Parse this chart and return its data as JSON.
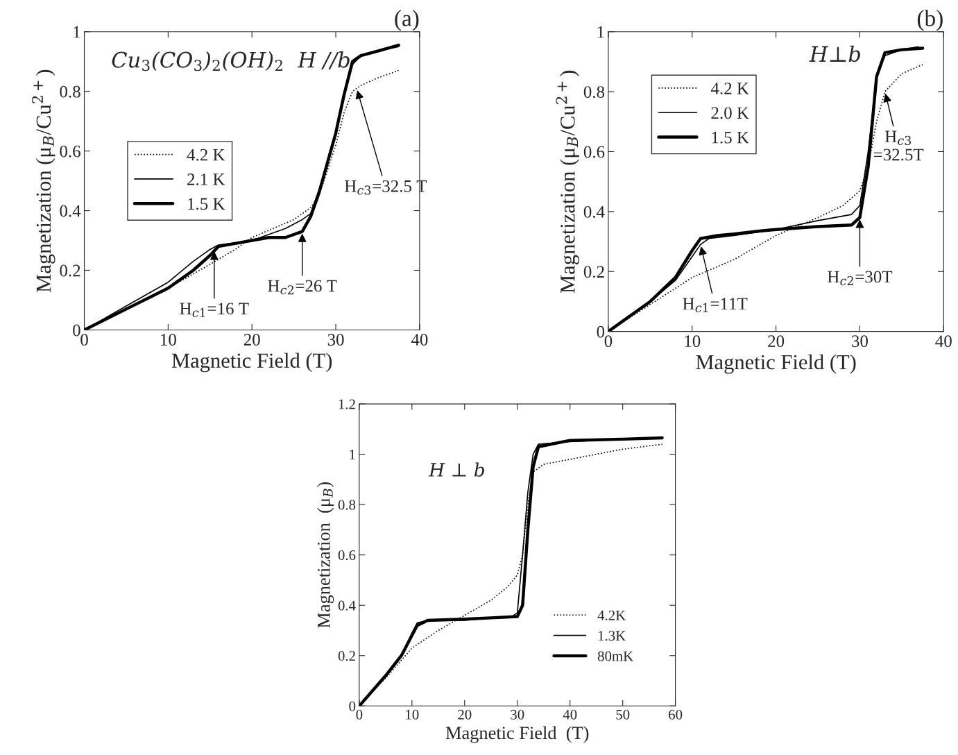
{
  "chart_data": [
    {
      "type": "line",
      "title": "(a)",
      "xlabel": "Magnetic Field (T)",
      "ylabel": "Magnetization (μ$_{B}$/Cu$^{2+}$)",
      "xlim": [
        0,
        40
      ],
      "ylim": [
        0,
        1
      ],
      "xticks": [
        0,
        10,
        20,
        30,
        40
      ],
      "yticks": [
        0,
        0.2,
        0.4,
        0.6,
        0.8,
        1
      ],
      "legend": "left",
      "grid": false,
      "series": [
        {
          "name": "4.2 K",
          "color": "#000000",
          "line_style": "dotted",
          "x": [
            0,
            5,
            10,
            15,
            18,
            20,
            25,
            27,
            28,
            30,
            31,
            32,
            33,
            35,
            37.5
          ],
          "values": [
            0,
            0.07,
            0.14,
            0.22,
            0.27,
            0.31,
            0.37,
            0.41,
            0.45,
            0.62,
            0.73,
            0.8,
            0.82,
            0.845,
            0.87
          ]
        },
        {
          "name": "2.1 K",
          "color": "#000000",
          "line_style": "solid",
          "x": [
            0,
            5,
            10,
            13,
            15,
            16,
            20,
            24,
            26,
            27,
            28,
            30,
            31,
            32,
            33,
            35,
            37.5
          ],
          "values": [
            0,
            0.08,
            0.16,
            0.23,
            0.27,
            0.285,
            0.3,
            0.34,
            0.37,
            0.39,
            0.47,
            0.66,
            0.79,
            0.89,
            0.92,
            0.935,
            0.95
          ]
        },
        {
          "name": "1.5 K",
          "color": "#000000",
          "line_style": "solid",
          "x": [
            0,
            5,
            10,
            13,
            15,
            16,
            18,
            20,
            22,
            24,
            26,
            27,
            28,
            30,
            31,
            32,
            33,
            35,
            37.5
          ],
          "values": [
            0,
            0.07,
            0.14,
            0.2,
            0.25,
            0.28,
            0.29,
            0.3,
            0.31,
            0.31,
            0.33,
            0.38,
            0.46,
            0.66,
            0.79,
            0.9,
            0.92,
            0.935,
            0.955
          ]
        }
      ],
      "annotations": [
        "Cu$_{3}$(CO$_{3}$)$_{2}$(OH)$_{2}$  H //b",
        {
          "text": "H$_{c1}$=16 T",
          "x": 15.5,
          "y": 0.27
        },
        {
          "text": "H$_{c2}$=26 T",
          "x": 26,
          "y": 0.33
        },
        {
          "text": "H$_{c3}$=32.5 T",
          "x": 32.5,
          "y": 0.81
        }
      ]
    },
    {
      "type": "line",
      "title": "(b)",
      "xlabel": "Magnetic Field (T)",
      "ylabel": "Magnetization (μ$_{B}$/Cu$^{2+}$)",
      "xlim": [
        0,
        40
      ],
      "ylim": [
        0,
        1
      ],
      "xticks": [
        0,
        10,
        20,
        30,
        40
      ],
      "yticks": [
        0,
        0.2,
        0.4,
        0.6,
        0.8,
        1
      ],
      "legend": "upper left",
      "grid": false,
      "series": [
        {
          "name": "4.2 K",
          "color": "#000000",
          "line_style": "dotted",
          "x": [
            0,
            5,
            10,
            15,
            20,
            25,
            28,
            30,
            31,
            32,
            33,
            35,
            37.5
          ],
          "values": [
            0,
            0.09,
            0.18,
            0.24,
            0.32,
            0.38,
            0.42,
            0.47,
            0.55,
            0.7,
            0.8,
            0.86,
            0.89
          ]
        },
        {
          "name": "2.0 K",
          "color": "#000000",
          "line_style": "solid",
          "x": [
            0,
            5,
            8,
            10,
            11,
            12,
            15,
            20,
            25,
            29,
            30,
            31,
            32,
            33,
            35,
            37
          ],
          "values": [
            0,
            0.1,
            0.17,
            0.25,
            0.29,
            0.31,
            0.32,
            0.34,
            0.37,
            0.39,
            0.42,
            0.6,
            0.85,
            0.92,
            0.94,
            0.95
          ]
        },
        {
          "name": "1.5 K",
          "color": "#000000",
          "line_style": "solid",
          "x": [
            0,
            5,
            8,
            10,
            11,
            13,
            15,
            18,
            20,
            25,
            29,
            30,
            31,
            32,
            33,
            35,
            37.5
          ],
          "values": [
            0,
            0.1,
            0.18,
            0.27,
            0.31,
            0.32,
            0.325,
            0.335,
            0.34,
            0.35,
            0.355,
            0.38,
            0.55,
            0.85,
            0.93,
            0.94,
            0.945
          ]
        }
      ],
      "annotations": [
        "H⊥b",
        {
          "text": "H$_{c1}$=11T",
          "x": 11,
          "y": 0.29
        },
        {
          "text": "H$_{c2}$=30T",
          "x": 30,
          "y": 0.38
        },
        {
          "text": "H$_{c3}$\n=32.5T",
          "x": 33,
          "y": 0.8
        }
      ]
    },
    {
      "type": "line",
      "xlabel": "Magnetic Field  (T)",
      "ylabel": "Magnetization  (μ$_{B}$)",
      "xlim": [
        0,
        60
      ],
      "ylim": [
        0,
        1.2
      ],
      "xticks": [
        0,
        10,
        20,
        30,
        40,
        50,
        60
      ],
      "yticks": [
        0,
        0.2,
        0.4,
        0.6,
        0.8,
        1,
        1.2
      ],
      "legend": "lower right",
      "grid": false,
      "series": [
        {
          "name": "4.2K",
          "color": "#000000",
          "line_style": "dotted",
          "x": [
            0,
            5,
            10,
            15,
            20,
            25,
            28,
            30,
            31,
            32,
            33,
            35,
            40,
            45,
            50,
            57.5
          ],
          "values": [
            0,
            0.11,
            0.23,
            0.3,
            0.36,
            0.42,
            0.47,
            0.52,
            0.6,
            0.8,
            0.93,
            0.96,
            0.98,
            1.0,
            1.02,
            1.04
          ]
        },
        {
          "name": "1.3K",
          "color": "#000000",
          "line_style": "solid",
          "x": [
            0,
            5,
            8,
            10,
            11,
            13,
            20,
            25,
            29,
            30,
            31,
            32,
            33,
            34,
            40,
            50,
            57.5
          ],
          "values": [
            0,
            0.12,
            0.2,
            0.29,
            0.33,
            0.34,
            0.34,
            0.35,
            0.355,
            0.37,
            0.6,
            0.85,
            1.0,
            1.04,
            1.05,
            1.06,
            1.065
          ]
        },
        {
          "name": "80mK",
          "color": "#000000",
          "line_style": "solid",
          "x": [
            0,
            5,
            8,
            10,
            11,
            13,
            20,
            25,
            30,
            31,
            32,
            33,
            34,
            40,
            50,
            57.5
          ],
          "values": [
            0,
            0.12,
            0.2,
            0.28,
            0.32,
            0.34,
            0.345,
            0.35,
            0.355,
            0.4,
            0.7,
            0.95,
            1.03,
            1.055,
            1.06,
            1.065
          ]
        }
      ],
      "annotations": [
        "H ⊥ b"
      ]
    }
  ]
}
